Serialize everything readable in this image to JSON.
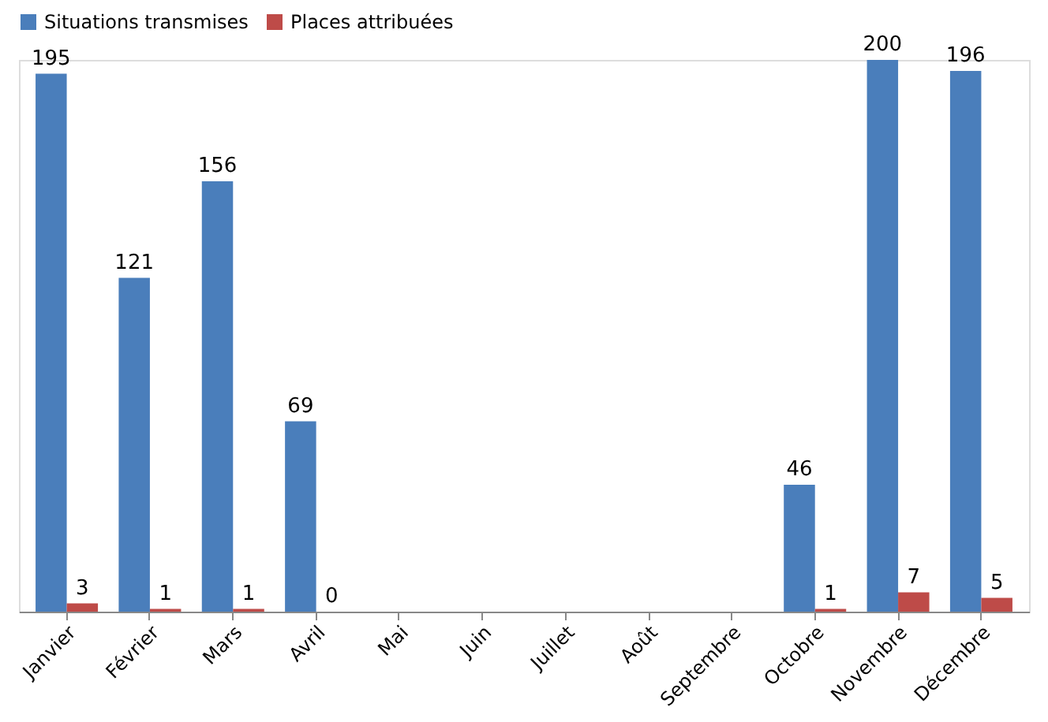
{
  "chart_data": {
    "type": "bar",
    "categories": [
      "Janvier",
      "Février",
      "Mars",
      "Avril",
      "Mai",
      "Juin",
      "Juillet",
      "Août",
      "Septembre",
      "Octobre",
      "Novembre",
      "Décembre"
    ],
    "series": [
      {
        "name": "Situations transmises",
        "color": "#4a7ebb",
        "values": [
          195,
          121,
          156,
          69,
          null,
          null,
          null,
          null,
          null,
          46,
          200,
          196
        ]
      },
      {
        "name": "Places attribuées",
        "color": "#be4b48",
        "values": [
          3,
          1,
          1,
          0,
          null,
          null,
          null,
          null,
          null,
          1,
          7,
          5
        ]
      }
    ],
    "data_labels": true,
    "legend": "top",
    "grid": false
  }
}
